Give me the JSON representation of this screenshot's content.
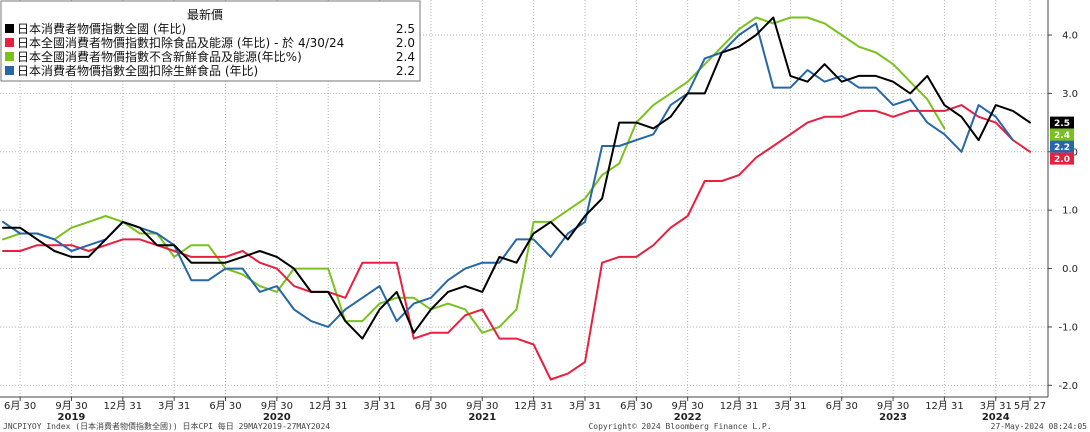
{
  "chart_data": {
    "type": "line",
    "ylim": [
      -2.2,
      4.6
    ],
    "yticks": [
      -2.0,
      -1.0,
      0.0,
      1.0,
      2.0,
      3.0,
      4.0
    ],
    "ytick_labels": [
      "-2.0",
      "-1.0",
      "0.0",
      "1.0",
      "2.0",
      "3.0",
      "4.0"
    ],
    "x_start": "2019-05",
    "x_end": "2024-05",
    "month_ticks": [
      {
        "month": "2019-06",
        "label": "6月 30"
      },
      {
        "month": "2019-09",
        "label": "9月 30"
      },
      {
        "month": "2019-12",
        "label": "12月 31"
      },
      {
        "month": "2020-03",
        "label": "3月 31"
      },
      {
        "month": "2020-06",
        "label": "6月 30"
      },
      {
        "month": "2020-09",
        "label": "9月 30"
      },
      {
        "month": "2020-12",
        "label": "12月 31"
      },
      {
        "month": "2021-03",
        "label": "3月 31"
      },
      {
        "month": "2021-06",
        "label": "6月 30"
      },
      {
        "month": "2021-09",
        "label": "9月 30"
      },
      {
        "month": "2021-12",
        "label": "12月 31"
      },
      {
        "month": "2022-03",
        "label": "3月 31"
      },
      {
        "month": "2022-06",
        "label": "6月 30"
      },
      {
        "month": "2022-09",
        "label": "9月 30"
      },
      {
        "month": "2022-12",
        "label": "12月 31"
      },
      {
        "month": "2023-03",
        "label": "3月 31"
      },
      {
        "month": "2023-06",
        "label": "6月 30"
      },
      {
        "month": "2023-09",
        "label": "9月 30"
      },
      {
        "month": "2023-12",
        "label": "12月 31"
      },
      {
        "month": "2024-03",
        "label": "3月 31"
      },
      {
        "month": "2024-05",
        "label": "5月 27"
      }
    ],
    "year_labels": [
      {
        "month": "2019-09",
        "label": "2019"
      },
      {
        "month": "2020-09",
        "label": "2020"
      },
      {
        "month": "2021-09",
        "label": "2021"
      },
      {
        "month": "2022-09",
        "label": "2022"
      },
      {
        "month": "2023-09",
        "label": "2023"
      },
      {
        "month": "2024-03",
        "label": "2024"
      }
    ],
    "legend_title": "最新價",
    "series": [
      {
        "name": "日本消費者物價指數全國 (年比)",
        "color": "#000000",
        "last": "2.5",
        "values": [
          0.7,
          0.7,
          0.5,
          0.3,
          0.2,
          0.2,
          0.5,
          0.8,
          0.7,
          0.4,
          0.4,
          0.1,
          0.1,
          0.1,
          0.2,
          0.3,
          0.2,
          0.0,
          -0.4,
          -0.4,
          -0.9,
          -1.2,
          -0.7,
          -0.4,
          -1.1,
          -0.7,
          -0.4,
          -0.3,
          -0.4,
          0.2,
          0.1,
          0.6,
          0.8,
          0.5,
          0.9,
          1.2,
          2.5,
          2.5,
          2.4,
          2.6,
          3.0,
          3.0,
          3.7,
          3.8,
          4.0,
          4.3,
          3.3,
          3.2,
          3.5,
          3.2,
          3.3,
          3.3,
          3.2,
          3.0,
          3.3,
          2.8,
          2.6,
          2.2,
          2.8,
          2.7,
          2.5
        ]
      },
      {
        "name": "日本全國消費者物價指數扣除食品及能源 (年比) -  於 4/30/24",
        "color": "#e8203f",
        "last": "2.0",
        "values": [
          0.3,
          0.3,
          0.4,
          0.4,
          0.4,
          0.3,
          0.4,
          0.5,
          0.5,
          0.4,
          0.3,
          0.2,
          0.2,
          0.2,
          0.3,
          0.1,
          0.0,
          -0.3,
          -0.4,
          -0.4,
          -0.5,
          0.1,
          0.1,
          0.1,
          -1.2,
          -1.1,
          -1.1,
          -0.8,
          -0.7,
          -1.2,
          -1.2,
          -1.3,
          -1.9,
          -1.8,
          -1.6,
          0.1,
          0.2,
          0.2,
          0.4,
          0.7,
          0.9,
          1.5,
          1.5,
          1.6,
          1.9,
          2.1,
          2.3,
          2.5,
          2.6,
          2.6,
          2.7,
          2.7,
          2.6,
          2.7,
          2.7,
          2.7,
          2.8,
          2.6,
          2.5,
          2.2,
          2.0
        ]
      },
      {
        "name": "日本全國消費者物價指數不含新鮮食品及能源(年比%)",
        "color": "#7ac11e",
        "last": "2.4",
        "values": [
          0.5,
          0.6,
          0.6,
          0.5,
          0.7,
          0.8,
          0.9,
          0.8,
          0.6,
          0.6,
          0.2,
          0.4,
          0.4,
          0.0,
          -0.1,
          -0.3,
          -0.4,
          0.0,
          0.0,
          0.0,
          -0.9,
          -0.9,
          -0.6,
          -0.5,
          -0.5,
          -0.7,
          -0.6,
          -0.7,
          -1.1,
          -1.0,
          -0.7,
          0.8,
          0.8,
          1.0,
          1.2,
          1.6,
          1.8,
          2.5,
          2.8,
          3.0,
          3.2,
          3.5,
          3.8,
          4.1,
          4.3,
          4.2,
          4.3,
          4.3,
          4.2,
          4.0,
          3.8,
          3.7,
          3.5,
          3.2,
          2.9,
          2.4
        ]
      },
      {
        "name": "日本消費者物價指數全國扣除生鮮食品 (年比)",
        "color": "#2667a8",
        "last": "2.2",
        "values": [
          0.8,
          0.6,
          0.6,
          0.5,
          0.3,
          0.4,
          0.5,
          0.8,
          0.7,
          0.6,
          0.4,
          -0.2,
          -0.2,
          0.0,
          0.0,
          -0.4,
          -0.3,
          -0.7,
          -0.9,
          -1.0,
          -0.7,
          -0.5,
          -0.3,
          -0.9,
          -0.6,
          -0.5,
          -0.2,
          0.0,
          0.1,
          0.1,
          0.5,
          0.5,
          0.2,
          0.6,
          0.8,
          2.1,
          2.1,
          2.2,
          2.3,
          2.8,
          3.0,
          3.6,
          3.7,
          4.0,
          4.2,
          3.1,
          3.1,
          3.4,
          3.2,
          3.3,
          3.1,
          3.1,
          2.8,
          2.9,
          2.5,
          2.3,
          2.0,
          2.8,
          2.6,
          2.2
        ]
      }
    ],
    "footer_left": "JNCPIYOY Index (日本消費者物價指數全國)) 日本CPI  每日 29MAY2019-27MAY2024",
    "footer_center": "Copyright© 2024 Bloomberg Finance L.P.",
    "footer_right": "27-May-2024 08:24:05"
  }
}
